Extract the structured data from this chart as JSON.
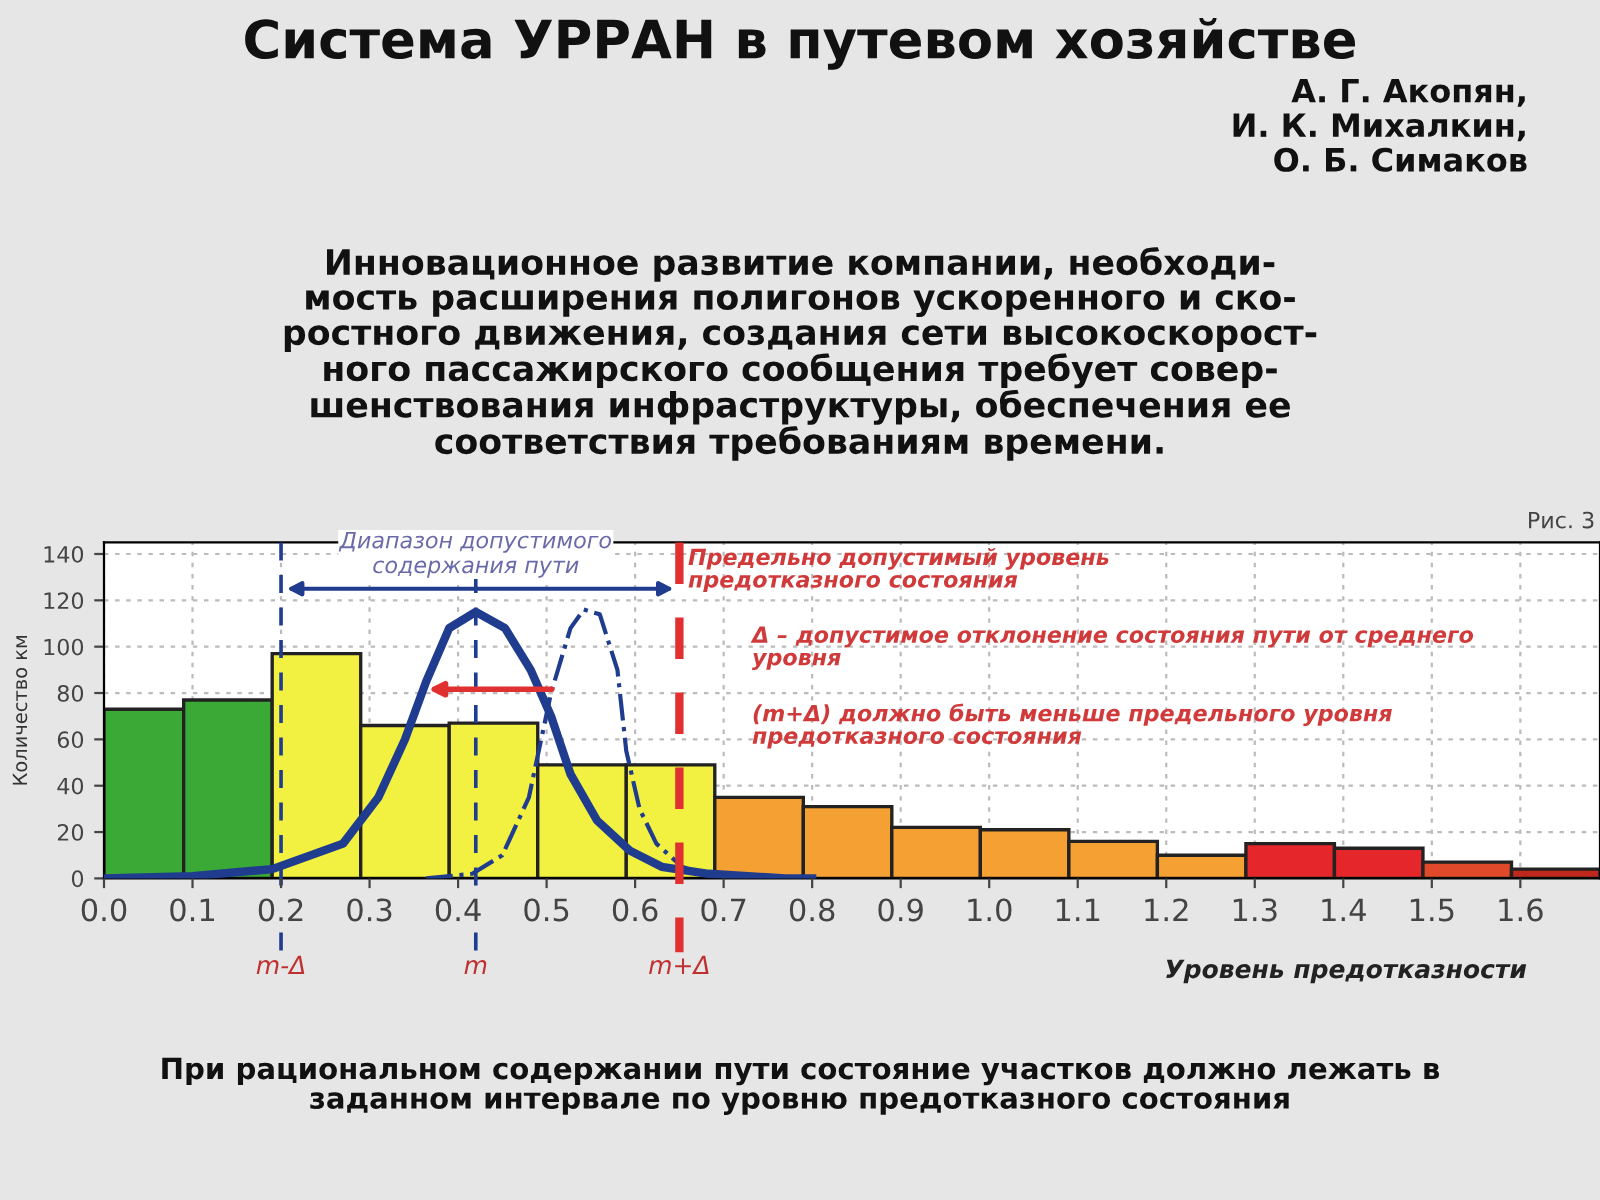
{
  "chart_data": {
    "type": "histogram",
    "title": "Система УРРАН в путевом хозяйстве",
    "subtitle": "А. Г. Акопян,\nИ. К. Михалкин,\nО. Б. Симаков",
    "xlabel": "Уровень предотказности",
    "ylabel": "Количество км",
    "bins": [
      0.0,
      0.09,
      0.19,
      0.29,
      0.39,
      0.49,
      0.59,
      0.69,
      0.79,
      0.89,
      0.99,
      1.09,
      1.19,
      1.29,
      1.39,
      1.49,
      1.59,
      1.69
    ],
    "values": [
      73,
      77,
      97,
      66,
      67,
      49,
      49,
      35,
      31,
      22,
      21,
      16,
      10,
      15,
      13,
      7,
      4
    ],
    "colors": [
      "#3aa935",
      "#3aa935",
      "#f2f040",
      "#f2f040",
      "#f2f040",
      "#f2f040",
      "#f2f040",
      "#f5a033",
      "#f5a033",
      "#f5a033",
      "#f5a033",
      "#f5a033",
      "#f5a033",
      "#e5262a",
      "#e5262a",
      "#e04a2a",
      "#c0281e"
    ],
    "series": [
      {
        "type": "line",
        "color": "#1f3c8f",
        "line_style": "solid",
        "x": [
          0.0,
          0.1,
          0.19,
          0.27,
          0.31,
          0.34,
          0.364,
          0.39,
          0.42,
          0.453,
          0.482,
          0.505,
          0.527,
          0.557,
          0.594,
          0.63,
          0.683,
          0.77,
          0.8
        ],
        "values": [
          0,
          1,
          4,
          15,
          35,
          60,
          85,
          108,
          115,
          108,
          90,
          70,
          45,
          25,
          12,
          5,
          2,
          0,
          0
        ]
      },
      {
        "type": "line",
        "color": "#1f3c8f",
        "line_style": "dashed",
        "x": [
          0.364,
          0.416,
          0.45,
          0.48,
          0.505,
          0.527,
          0.542,
          0.56,
          0.58,
          0.59,
          0.605,
          0.624,
          0.653,
          0.683
        ],
        "values": [
          0,
          2,
          10,
          35,
          80,
          108,
          116,
          114,
          90,
          55,
          30,
          15,
          5,
          1
        ]
      }
    ],
    "ref_lines": [
      {
        "axis": "x",
        "value": 0.2,
        "label": "m-Δ",
        "color": "#1f3c8f",
        "line_style": "dashed"
      },
      {
        "axis": "x",
        "value": 0.42,
        "label": "m",
        "color": "#1f3c8f",
        "line_style": "dashed"
      },
      {
        "axis": "x",
        "value": 0.65,
        "label": "m+Δ",
        "color": "#e03030",
        "line_style": "dashed"
      }
    ],
    "annotations": [
      "Инновационное развитие компании, необходи-\nмость расширения полигонов ускоренного и ско-\nростного движения, создания сети высокоскорост-\nного пассажирского сообщения требует совер-\nшенствования инфраструктуры, обеспечения ее\nсоответствия требованиям времени.",
      {
        "text": "Диапазон допустимого\nсодержания пути",
        "x": 0.42,
        "y": 125
      },
      "Предельно допустимый уровень\nпредотказного состояния",
      "Δ – допустимое отклонение состояния пути от среднего\nуровня",
      "(m+Δ) должно быть меньше предельного уровня\nпредотказного состояния",
      "Рис. 3",
      "При рациональном содержании пути состояние участков должно лежать в\nзаданном интервале по уровню предотказного состояния"
    ],
    "xlim": [
      0.0,
      1.69
    ],
    "ylim": [
      0,
      145
    ],
    "xticks": [
      {
        "value": 0,
        "label": "0.0"
      },
      0.1,
      0.2,
      0.3,
      0.4,
      0.5,
      0.6,
      0.7,
      0.8,
      0.9,
      {
        "value": 1,
        "label": "1.0"
      },
      1.1,
      1.2,
      1.3,
      1.4,
      1.5,
      1.6
    ],
    "yticks": [
      0,
      20,
      40,
      60,
      80,
      100,
      120,
      140
    ],
    "grid": true
  }
}
